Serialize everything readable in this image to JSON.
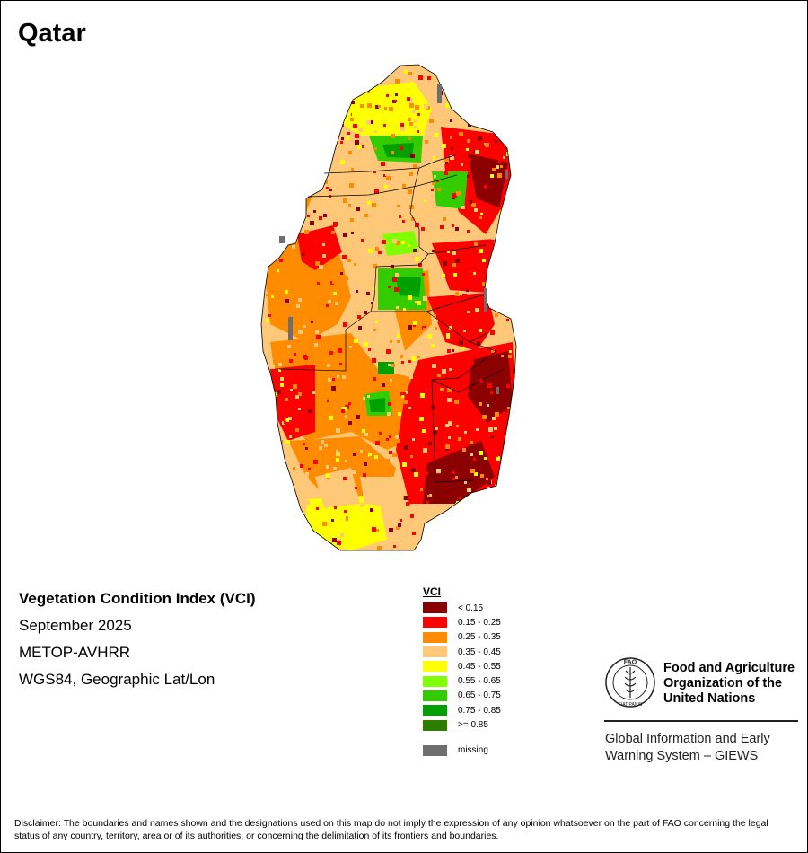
{
  "title": "Qatar",
  "map": {
    "info": {
      "index_title": "Vegetation Condition Index (VCI)",
      "period": "September 2025",
      "sensor": "METOP-AVHRR",
      "projection": "WGS84, Geographic Lat/Lon"
    },
    "legend": {
      "title": "VCI",
      "items": [
        {
          "label": "< 0.15",
          "color": "#8b0000"
        },
        {
          "label": "0.15 - 0.25",
          "color": "#ff0000"
        },
        {
          "label": "0.25 - 0.35",
          "color": "#ff8c00"
        },
        {
          "label": "0.35 - 0.45",
          "color": "#ffc878"
        },
        {
          "label": "0.45 - 0.55",
          "color": "#ffff00"
        },
        {
          "label": "0.55 - 0.65",
          "color": "#80ff00"
        },
        {
          "label": "0.65 - 0.75",
          "color": "#33cc00"
        },
        {
          "label": "0.75 - 0.85",
          "color": "#00a000"
        },
        {
          "label": ">= 0.85",
          "color": "#2e7d00"
        }
      ],
      "missing": {
        "label": "missing",
        "color": "#6e6e6e"
      }
    }
  },
  "organization": {
    "logo_text": "FAO",
    "logo_motto": "FIAT PANIS",
    "name": "Food and Agriculture\nOrganization of the\nUnited Nations",
    "system": "Global Information and Early\nWarning System – GIEWS"
  },
  "disclaimer": "Disclaimer: The boundaries and names shown and the designations used on this map do not imply the expression of any opinion whatsoever on the part of FAO concerning the legal status of any country, territory, area or of its authorities, or concerning the delimitation of its frontiers and boundaries."
}
